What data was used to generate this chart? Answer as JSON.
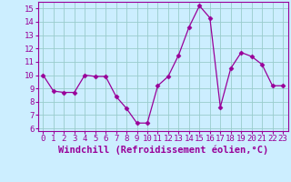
{
  "x": [
    0,
    1,
    2,
    3,
    4,
    5,
    6,
    7,
    8,
    9,
    10,
    11,
    12,
    13,
    14,
    15,
    16,
    17,
    18,
    19,
    20,
    21,
    22,
    23
  ],
  "y": [
    10.0,
    8.8,
    8.7,
    8.7,
    10.0,
    9.9,
    9.9,
    8.4,
    7.5,
    6.4,
    6.4,
    9.2,
    9.9,
    11.5,
    13.6,
    15.2,
    14.3,
    7.6,
    10.5,
    11.7,
    11.4,
    10.8,
    9.2,
    9.2
  ],
  "line_color": "#990099",
  "marker": "D",
  "marker_size": 2.5,
  "bg_color": "#cceeff",
  "grid_color": "#99cccc",
  "ylabel_ticks": [
    6,
    7,
    8,
    9,
    10,
    11,
    12,
    13,
    14,
    15
  ],
  "xlabel_ticks": [
    0,
    1,
    2,
    3,
    4,
    5,
    6,
    7,
    8,
    9,
    10,
    11,
    12,
    13,
    14,
    15,
    16,
    17,
    18,
    19,
    20,
    21,
    22,
    23
  ],
  "xlabel": "Windchill (Refroidissement éolien,°C)",
  "ylim": [
    5.8,
    15.5
  ],
  "xlim": [
    -0.5,
    23.5
  ],
  "tick_color": "#990099",
  "label_color": "#990099",
  "tick_fontsize": 6.5,
  "xlabel_fontsize": 7.5
}
